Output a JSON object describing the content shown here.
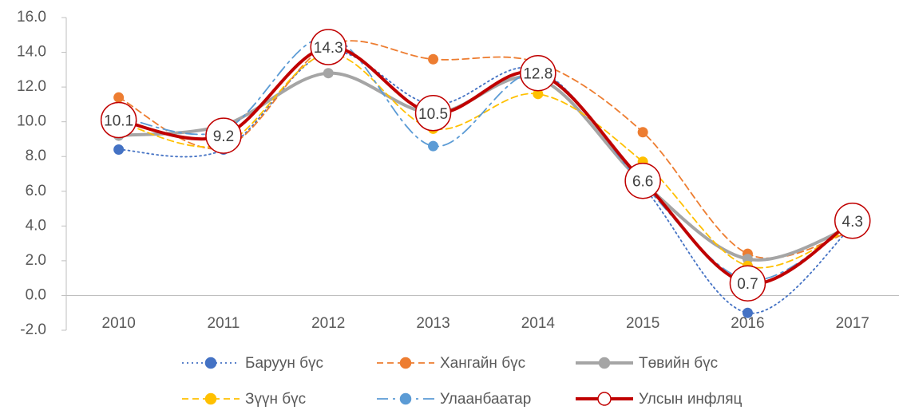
{
  "chart_data": {
    "type": "line",
    "categories": [
      "2010",
      "2011",
      "2012",
      "2013",
      "2014",
      "2015",
      "2016",
      "2017"
    ],
    "series": [
      {
        "name": "Баруун бүс",
        "color": "#4472c4",
        "dash": "dotted",
        "values": [
          8.4,
          8.4,
          14.0,
          11.0,
          13.0,
          6.3,
          -1.0,
          4.0
        ]
      },
      {
        "name": "Хангайн бүс",
        "color": "#ed7d31",
        "dash": "dashed",
        "values": [
          11.4,
          8.5,
          14.4,
          13.6,
          13.4,
          9.4,
          2.4,
          3.7
        ]
      },
      {
        "name": "Төвийн бүс",
        "color": "#a5a5a5",
        "dash": "solid",
        "values": [
          9.2,
          9.8,
          12.8,
          10.5,
          12.5,
          6.5,
          2.1,
          4.0
        ]
      },
      {
        "name": "Зүүн бүс",
        "color": "#ffc000",
        "dash": "dashed",
        "values": [
          10.0,
          8.7,
          13.9,
          9.6,
          11.6,
          7.7,
          1.7,
          3.9
        ]
      },
      {
        "name": "Улаанбаатар",
        "color": "#5b9bd5",
        "dash": "dashdot",
        "values": [
          10.3,
          9.5,
          14.9,
          8.6,
          12.8,
          6.4,
          0.9,
          4.2
        ]
      },
      {
        "name": "Улсын инфляц",
        "color": "#c00000",
        "dash": "solid",
        "data_labels": true,
        "values": [
          10.1,
          9.2,
          14.3,
          10.5,
          12.8,
          6.6,
          0.7,
          4.3
        ]
      }
    ],
    "ylim": [
      -2,
      16
    ],
    "yticks": [
      {
        "value": -2,
        "label": "-2.0"
      },
      {
        "value": 0,
        "label": "0.0"
      },
      {
        "value": 2,
        "label": "2.0"
      },
      {
        "value": 4,
        "label": "4.0"
      },
      {
        "value": 6,
        "label": "6.0"
      },
      {
        "value": 8,
        "label": "8.0"
      },
      {
        "value": 10,
        "label": "10.0"
      },
      {
        "value": 12,
        "label": "12.0"
      },
      {
        "value": 14,
        "label": "14.0"
      },
      {
        "value": 16,
        "label": "16.0"
      }
    ],
    "smooth": true
  }
}
